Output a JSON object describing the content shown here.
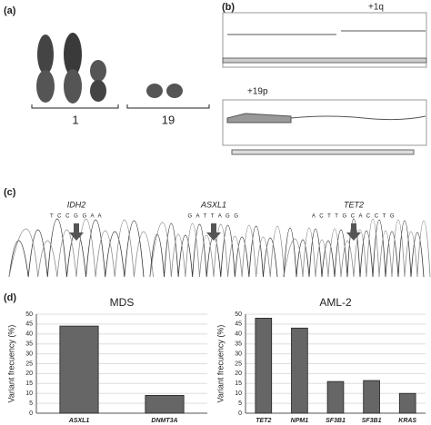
{
  "panel_a": {
    "label": "(a)",
    "groups": [
      "1",
      "19"
    ]
  },
  "panel_b": {
    "label": "(b)",
    "annotations": [
      "+1q",
      "+19p"
    ]
  },
  "panel_c": {
    "label": "(c)",
    "traces": [
      {
        "gene": "IDH2",
        "sequence": "T C C G G A A"
      },
      {
        "gene": "ASXL1",
        "sequence": "G A T T A G G"
      },
      {
        "gene": "TET2",
        "sequence": "A C T T G C A C C T G"
      }
    ]
  },
  "panel_d": {
    "label": "(d)"
  },
  "chart_data": [
    {
      "type": "bar",
      "title": "MDS",
      "y_label": "Variant frecuency (%)",
      "categories": [
        "ASXL1",
        "DNMT3A"
      ],
      "values": [
        44,
        9
      ],
      "color": "#666666",
      "ylim": [
        0,
        50
      ],
      "yticks": [
        0,
        5,
        10,
        15,
        20,
        25,
        30,
        35,
        40,
        45,
        50
      ],
      "grid": true
    },
    {
      "type": "bar",
      "title": "AML-2",
      "y_label": "Variant frecuency (%)",
      "categories": [
        "TET2",
        "NPM1",
        "SF3B1",
        "SF3B1",
        "KRAS"
      ],
      "values": [
        48,
        43,
        16,
        16.5,
        10
      ],
      "color": "#666666",
      "ylim": [
        0,
        50
      ],
      "yticks": [
        0,
        5,
        10,
        15,
        20,
        25,
        30,
        35,
        40,
        45,
        50
      ],
      "grid": true
    }
  ]
}
